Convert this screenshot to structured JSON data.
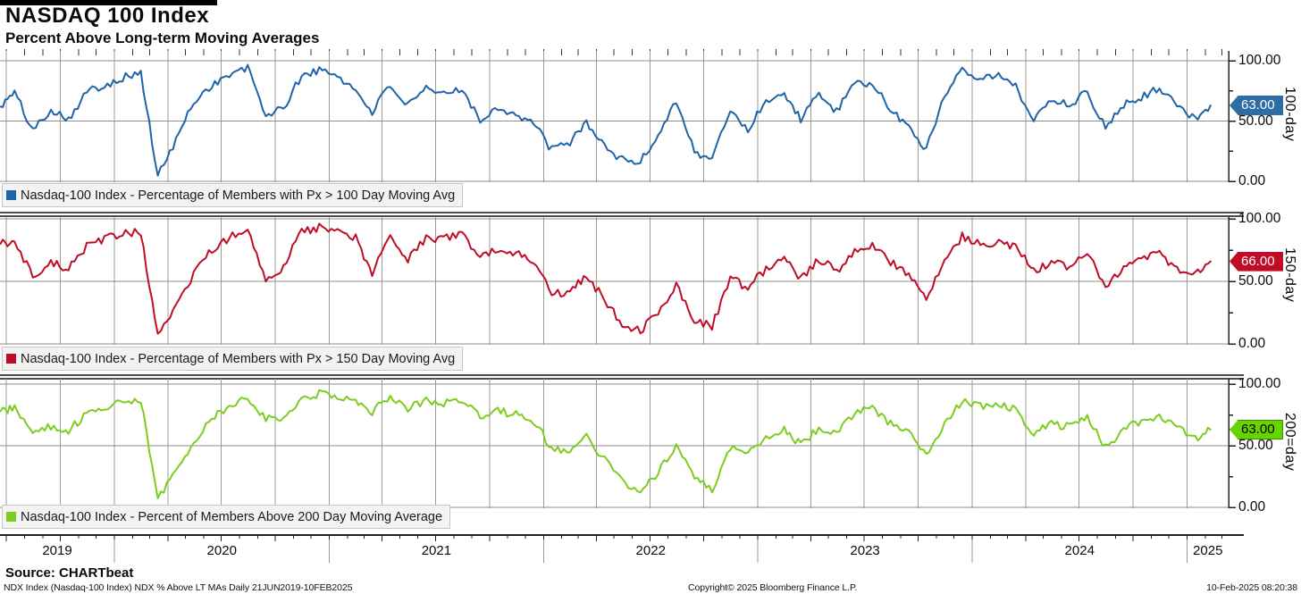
{
  "header": {
    "title": "NASDAQ 100 Index",
    "subtitle": "Percent Above Long-term Moving Averages"
  },
  "footer": {
    "source": "Source: CHARTbeat",
    "meta": "NDX Index (Nasdaq-100 Index) NDX % Above LT MAs  Daily 21JUN2019-10FEB2025",
    "copyright": "Copyright© 2025 Bloomberg Finance L.P.",
    "timestamp": "10-Feb-2025 08:20:38"
  },
  "chart_data": {
    "type": "line",
    "x_start": "2019-06-21",
    "x_end": "2025-02-10",
    "x_tick_labels": [
      "2019",
      "2020",
      "2021",
      "2022",
      "2023",
      "2024",
      "2025"
    ],
    "ylim": [
      0,
      100
    ],
    "y_ticks": [
      0,
      50,
      100
    ],
    "y_tick_labels": [
      "0.00",
      "50.00",
      "100.00"
    ],
    "grid": "on",
    "legend_position": "bottom-left-inside",
    "categories": [
      "2019-06-21",
      "2019-07",
      "2019-08",
      "2019-09",
      "2019-10",
      "2019-11",
      "2019-12",
      "2020-01",
      "2020-02",
      "2020-03",
      "2020-04",
      "2020-05",
      "2020-06",
      "2020-07",
      "2020-08",
      "2020-09",
      "2020-10",
      "2020-11",
      "2020-12",
      "2021-01",
      "2021-02",
      "2021-03",
      "2021-04",
      "2021-05",
      "2021-06",
      "2021-07",
      "2021-08",
      "2021-09",
      "2021-10",
      "2021-11",
      "2021-12",
      "2022-01",
      "2022-02",
      "2022-03",
      "2022-04",
      "2022-05",
      "2022-06",
      "2022-07",
      "2022-08",
      "2022-09",
      "2022-10",
      "2022-11",
      "2022-12",
      "2023-01",
      "2023-02",
      "2023-03",
      "2023-04",
      "2023-05",
      "2023-06",
      "2023-07",
      "2023-08",
      "2023-09",
      "2023-10",
      "2023-11",
      "2023-12",
      "2024-01",
      "2024-02",
      "2024-03",
      "2024-04",
      "2024-05",
      "2024-06",
      "2024-07",
      "2024-08",
      "2024-09",
      "2024-10",
      "2024-11",
      "2024-12",
      "2025-01",
      "2025-02-10"
    ],
    "panels": [
      {
        "axis_label": "100-day",
        "legend": "Nasdaq-100 Index - Percentage of Members with Px > 100 Day Moving Avg",
        "color": "#1f63a8",
        "last_value": 63.0,
        "tag": {
          "value": "63.00",
          "bg": "#2e6da4",
          "text_color": "#ffffff",
          "border": "#2e6da4"
        },
        "values": [
          62,
          74,
          42,
          60,
          52,
          74,
          80,
          86,
          90,
          4,
          34,
          66,
          80,
          88,
          94,
          55,
          60,
          88,
          92,
          88,
          75,
          58,
          80,
          62,
          76,
          72,
          78,
          50,
          62,
          55,
          48,
          26,
          32,
          50,
          28,
          18,
          16,
          38,
          68,
          24,
          18,
          60,
          42,
          68,
          72,
          52,
          72,
          58,
          80,
          82,
          58,
          46,
          26,
          72,
          94,
          86,
          88,
          78,
          52,
          68,
          64,
          74,
          44,
          64,
          70,
          78,
          62,
          52,
          63
        ]
      },
      {
        "axis_label": "150-day",
        "legend": "Nasdaq-100 Index - Percentage of Members with Px > 150 Day Moving Avg",
        "color": "#bf0d26",
        "last_value": 66.0,
        "tag": {
          "value": "66.00",
          "bg": "#bf0d26",
          "text_color": "#ffffff",
          "border": "#bf0d26"
        },
        "values": [
          80,
          82,
          55,
          65,
          60,
          78,
          84,
          88,
          90,
          6,
          30,
          55,
          75,
          85,
          93,
          52,
          62,
          90,
          93,
          92,
          85,
          55,
          88,
          68,
          85,
          84,
          88,
          70,
          75,
          72,
          65,
          40,
          42,
          55,
          35,
          15,
          10,
          25,
          48,
          18,
          14,
          52,
          45,
          60,
          68,
          52,
          68,
          58,
          75,
          80,
          65,
          55,
          35,
          68,
          86,
          80,
          82,
          78,
          58,
          65,
          62,
          72,
          45,
          62,
          68,
          72,
          60,
          55,
          66
        ]
      },
      {
        "axis_label": "200=day",
        "legend": "Nasdaq-100 Index - Percent of Members Above 200 Day Moving Average",
        "color": "#7ccd1e",
        "last_value": 63.0,
        "tag": {
          "value": "63.00",
          "bg": "#66d400",
          "text_color": "#000000",
          "border": "#3e8c00"
        },
        "values": [
          78,
          80,
          58,
          66,
          62,
          76,
          82,
          86,
          88,
          8,
          28,
          50,
          72,
          82,
          90,
          72,
          70,
          88,
          92,
          90,
          86,
          78,
          88,
          80,
          86,
          85,
          88,
          74,
          78,
          76,
          70,
          48,
          45,
          58,
          38,
          20,
          14,
          28,
          50,
          22,
          15,
          48,
          44,
          55,
          65,
          50,
          65,
          60,
          76,
          80,
          68,
          60,
          42,
          66,
          87,
          82,
          84,
          80,
          60,
          68,
          65,
          74,
          48,
          64,
          70,
          74,
          64,
          56,
          63
        ]
      }
    ]
  }
}
